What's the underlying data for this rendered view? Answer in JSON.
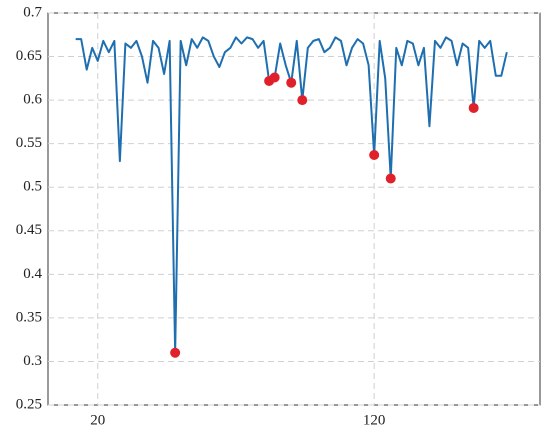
{
  "chart_data": {
    "type": "line",
    "x": [
      12,
      14,
      16,
      18,
      20,
      22,
      24,
      26,
      28,
      30,
      32,
      34,
      36,
      38,
      40,
      42,
      44,
      46,
      48,
      50,
      52,
      54,
      56,
      58,
      60,
      62,
      64,
      66,
      68,
      70,
      72,
      74,
      76,
      78,
      80,
      82,
      84,
      86,
      88,
      90,
      92,
      94,
      96,
      98,
      100,
      102,
      104,
      106,
      108,
      110,
      112,
      114,
      116,
      118,
      120,
      122,
      124,
      126,
      128,
      130,
      132,
      134,
      136,
      138,
      140,
      142,
      144,
      146,
      148,
      150,
      152,
      154,
      156,
      158,
      160,
      162,
      164,
      166,
      168
    ],
    "values": [
      0.67,
      0.67,
      0.635,
      0.66,
      0.645,
      0.668,
      0.655,
      0.668,
      0.53,
      0.665,
      0.66,
      0.668,
      0.65,
      0.62,
      0.668,
      0.66,
      0.63,
      0.668,
      0.31,
      0.668,
      0.64,
      0.67,
      0.66,
      0.672,
      0.668,
      0.65,
      0.638,
      0.655,
      0.66,
      0.672,
      0.665,
      0.672,
      0.67,
      0.66,
      0.668,
      0.622,
      0.626,
      0.665,
      0.64,
      0.62,
      0.668,
      0.6,
      0.66,
      0.668,
      0.67,
      0.655,
      0.66,
      0.672,
      0.668,
      0.64,
      0.66,
      0.67,
      0.665,
      0.64,
      0.537,
      0.668,
      0.625,
      0.51,
      0.66,
      0.64,
      0.668,
      0.665,
      0.64,
      0.66,
      0.57,
      0.668,
      0.66,
      0.672,
      0.668,
      0.64,
      0.665,
      0.66,
      0.591,
      0.668,
      0.66,
      0.668,
      0.628,
      0.628,
      0.655
    ],
    "color": "#1f6fb0",
    "points": {
      "x": [
        48,
        82,
        84,
        90,
        94,
        120,
        126,
        156
      ],
      "values": [
        0.31,
        0.622,
        0.626,
        0.62,
        0.6,
        0.537,
        0.51,
        0.591
      ],
      "color": "#e0202a"
    },
    "xlim": [
      2,
      180
    ],
    "xticks": [
      20,
      120
    ],
    "ylim": [
      0.25,
      0.7
    ],
    "yticks": [
      0.25,
      0.3,
      0.35,
      0.4,
      0.45,
      0.5,
      0.55,
      0.6,
      0.65,
      0.7
    ],
    "grid": true
  }
}
